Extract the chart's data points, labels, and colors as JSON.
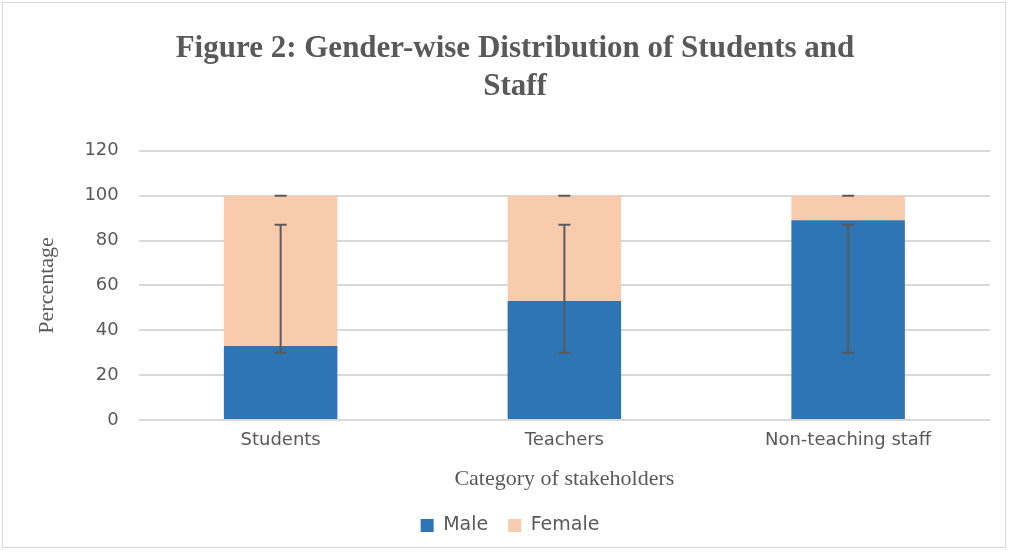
{
  "chart_data": {
    "type": "bar",
    "title": "Figure 2: Gender-wise Distribution of Students and Staff",
    "xlabel": "Category of stakeholders",
    "ylabel": "Percentage",
    "categories": [
      "Students",
      "Teachers",
      "Non-teaching staff"
    ],
    "stacked": true,
    "series": [
      {
        "name": "Male",
        "color": "#2e75b6",
        "values": [
          33,
          53,
          89
        ],
        "errors": [
          [
            30,
            87
          ],
          [
            30,
            87
          ],
          [
            30,
            87
          ]
        ]
      },
      {
        "name": "Female",
        "color": "#f8cbad",
        "values": [
          67,
          47,
          11
        ],
        "errors": [
          [
            100,
            100
          ],
          [
            100,
            100
          ],
          [
            100,
            100
          ]
        ]
      }
    ],
    "ylim": [
      0,
      120
    ],
    "yticks": [
      0,
      20,
      40,
      60,
      80,
      100,
      120
    ],
    "grid": "y",
    "legend": "bottom"
  }
}
